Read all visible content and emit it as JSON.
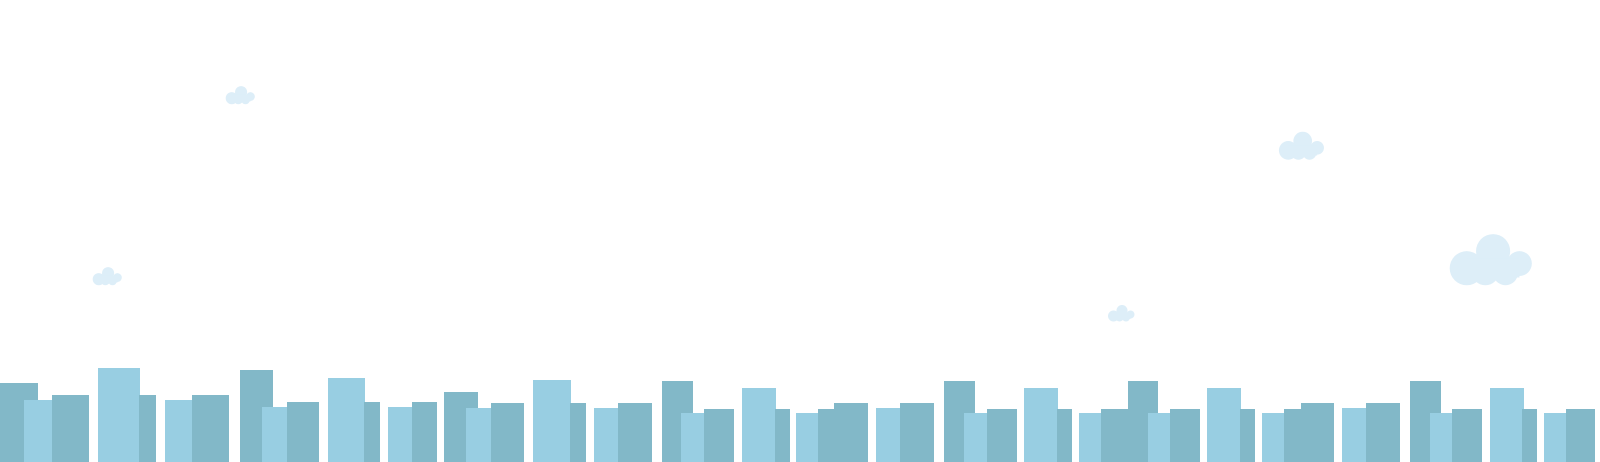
{
  "palette": {
    "background": "#ffffff",
    "building_dark": "#82b8c8",
    "building_light": "#98cee2",
    "cloud": "#ddeef8"
  },
  "scene": {
    "clouds": [
      {
        "name": "cloud-small-top-left"
      },
      {
        "name": "cloud-small-left"
      },
      {
        "name": "cloud-medium-right"
      },
      {
        "name": "cloud-small-center-right"
      },
      {
        "name": "cloud-large-right"
      }
    ],
    "skyline": {
      "name": "city-skyline"
    }
  }
}
